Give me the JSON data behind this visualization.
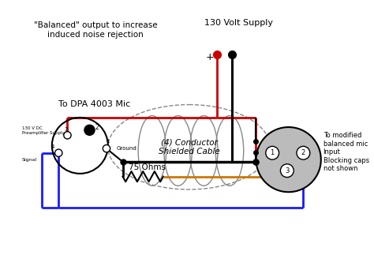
{
  "bg_color": "#ffffff",
  "title_left": "\"Balanced\" output to increase\ninduced noise rejection",
  "title_right": "130 Volt Supply",
  "label_left_top": "To DPA 4003 Mic",
  "label_left_small1": "130 V DC\nPreamplifier Supply",
  "label_left_small2": "Signal",
  "label_center": "(4) Conductor\nShielded Cable",
  "label_resistor": "75 Ohms",
  "label_ground": "Ground",
  "label_right": "To modified\nbalanced mic\nInput\nBlocking caps\nnot shown",
  "label_plus": "+",
  "red_color": "#cc0000",
  "blue_color": "#1a1aff",
  "orange_color": "#cc7700",
  "black_color": "#000000",
  "gray_color": "#aaaaaa",
  "pin2_fill": "#000000",
  "right_connector_fill": "#bbbbbb",
  "pin_hole_fill": "#ffffff"
}
